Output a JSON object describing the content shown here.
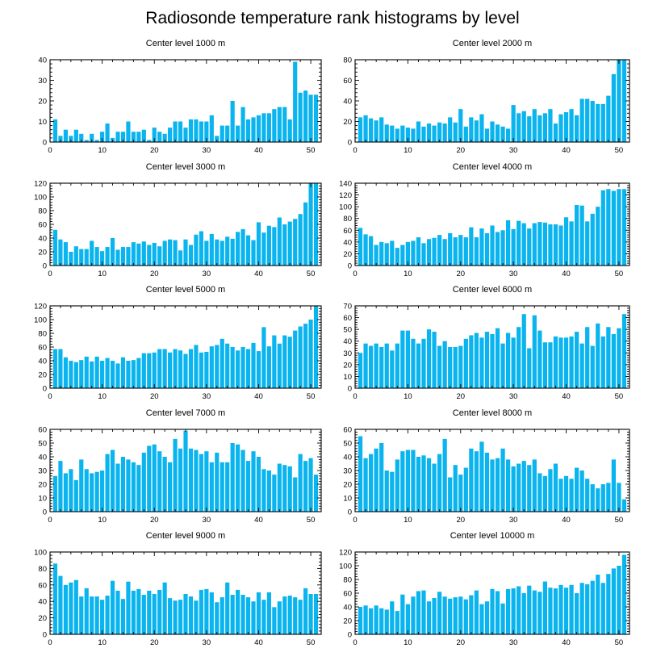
{
  "title": "Radiosonde temperature rank histograms by level",
  "colors": {
    "bar": "#0ab4ee",
    "axis": "#000000",
    "background": "#ffffff"
  },
  "chart_data": [
    {
      "type": "bar",
      "title": "Center level 1000 m",
      "xlim": [
        0,
        52
      ],
      "ylim": [
        0,
        40
      ],
      "xticks": [
        0,
        10,
        20,
        30,
        40,
        50
      ],
      "yticks": [
        0,
        10,
        20,
        30,
        40
      ],
      "x": [
        1,
        2,
        3,
        4,
        5,
        6,
        7,
        8,
        9,
        10,
        11,
        12,
        13,
        14,
        15,
        16,
        17,
        18,
        19,
        20,
        21,
        22,
        23,
        24,
        25,
        26,
        27,
        28,
        29,
        30,
        31,
        32,
        33,
        34,
        35,
        36,
        37,
        38,
        39,
        40,
        41,
        42,
        43,
        44,
        45,
        46,
        47,
        48,
        49,
        50,
        51
      ],
      "values": [
        11,
        3,
        6,
        3,
        6,
        4,
        1,
        4,
        1,
        5,
        9,
        2,
        5,
        5,
        10,
        5,
        5,
        6,
        1,
        7,
        5,
        4,
        7,
        10,
        10,
        7,
        11,
        11,
        10,
        10,
        13,
        3,
        8,
        8,
        20,
        8,
        17,
        11,
        12,
        13,
        14,
        14,
        16,
        17,
        17,
        11,
        39,
        24,
        25,
        23,
        23
      ]
    },
    {
      "type": "bar",
      "title": "Center level 2000 m",
      "xlim": [
        0,
        52
      ],
      "ylim": [
        0,
        80
      ],
      "xticks": [
        0,
        10,
        20,
        30,
        40,
        50
      ],
      "yticks": [
        0,
        20,
        40,
        60,
        80
      ],
      "x": [
        1,
        2,
        3,
        4,
        5,
        6,
        7,
        8,
        9,
        10,
        11,
        12,
        13,
        14,
        15,
        16,
        17,
        18,
        19,
        20,
        21,
        22,
        23,
        24,
        25,
        26,
        27,
        28,
        29,
        30,
        31,
        32,
        33,
        34,
        35,
        36,
        37,
        38,
        39,
        40,
        41,
        42,
        43,
        44,
        45,
        46,
        47,
        48,
        49,
        50,
        51
      ],
      "values": [
        24,
        26,
        23,
        21,
        24,
        17,
        16,
        13,
        16,
        14,
        13,
        20,
        15,
        18,
        16,
        19,
        18,
        24,
        19,
        32,
        15,
        24,
        21,
        27,
        13,
        20,
        17,
        15,
        13,
        36,
        28,
        30,
        25,
        32,
        26,
        28,
        32,
        18,
        27,
        29,
        32,
        26,
        42,
        42,
        40,
        37,
        37,
        45,
        66,
        80,
        80
      ]
    },
    {
      "type": "bar",
      "title": "Center level 3000 m",
      "xlim": [
        0,
        52
      ],
      "ylim": [
        0,
        120
      ],
      "xticks": [
        0,
        10,
        20,
        30,
        40,
        50
      ],
      "yticks": [
        0,
        20,
        40,
        60,
        80,
        100,
        120
      ],
      "x": [
        1,
        2,
        3,
        4,
        5,
        6,
        7,
        8,
        9,
        10,
        11,
        12,
        13,
        14,
        15,
        16,
        17,
        18,
        19,
        20,
        21,
        22,
        23,
        24,
        25,
        26,
        27,
        28,
        29,
        30,
        31,
        32,
        33,
        34,
        35,
        36,
        37,
        38,
        39,
        40,
        41,
        42,
        43,
        44,
        45,
        46,
        47,
        48,
        49,
        50,
        51
      ],
      "values": [
        52,
        38,
        34,
        20,
        28,
        24,
        24,
        36,
        27,
        21,
        27,
        40,
        23,
        27,
        27,
        34,
        32,
        35,
        30,
        33,
        28,
        36,
        38,
        37,
        22,
        38,
        30,
        45,
        50,
        36,
        46,
        38,
        36,
        42,
        39,
        49,
        53,
        44,
        37,
        63,
        48,
        58,
        56,
        70,
        60,
        64,
        68,
        75,
        92,
        120,
        120
      ]
    },
    {
      "type": "bar",
      "title": "Center level 4000 m",
      "xlim": [
        0,
        52
      ],
      "ylim": [
        0,
        140
      ],
      "xticks": [
        0,
        10,
        20,
        30,
        40,
        50
      ],
      "yticks": [
        0,
        20,
        40,
        60,
        80,
        100,
        120,
        140
      ],
      "x": [
        1,
        2,
        3,
        4,
        5,
        6,
        7,
        8,
        9,
        10,
        11,
        12,
        13,
        14,
        15,
        16,
        17,
        18,
        19,
        20,
        21,
        22,
        23,
        24,
        25,
        26,
        27,
        28,
        29,
        30,
        31,
        32,
        33,
        34,
        35,
        36,
        37,
        38,
        39,
        40,
        41,
        42,
        43,
        44,
        45,
        46,
        47,
        48,
        49,
        50,
        51
      ],
      "values": [
        64,
        53,
        50,
        35,
        40,
        38,
        42,
        30,
        35,
        40,
        42,
        48,
        38,
        45,
        47,
        52,
        45,
        55,
        48,
        52,
        48,
        65,
        48,
        63,
        55,
        68,
        57,
        60,
        77,
        62,
        76,
        72,
        63,
        72,
        74,
        73,
        70,
        70,
        68,
        82,
        75,
        103,
        102,
        75,
        88,
        100,
        128,
        130,
        127,
        130,
        130
      ]
    },
    {
      "type": "bar",
      "title": "Center level 5000 m",
      "xlim": [
        0,
        52
      ],
      "ylim": [
        0,
        120
      ],
      "xticks": [
        0,
        10,
        20,
        30,
        40,
        50
      ],
      "yticks": [
        0,
        20,
        40,
        60,
        80,
        100,
        120
      ],
      "x": [
        1,
        2,
        3,
        4,
        5,
        6,
        7,
        8,
        9,
        10,
        11,
        12,
        13,
        14,
        15,
        16,
        17,
        18,
        19,
        20,
        21,
        22,
        23,
        24,
        25,
        26,
        27,
        28,
        29,
        30,
        31,
        32,
        33,
        34,
        35,
        36,
        37,
        38,
        39,
        40,
        41,
        42,
        43,
        44,
        45,
        46,
        47,
        48,
        49,
        50,
        51
      ],
      "values": [
        57,
        57,
        45,
        40,
        38,
        41,
        46,
        39,
        46,
        40,
        44,
        40,
        36,
        45,
        40,
        41,
        44,
        51,
        51,
        52,
        57,
        57,
        52,
        57,
        55,
        50,
        57,
        63,
        52,
        53,
        61,
        63,
        72,
        65,
        60,
        55,
        60,
        57,
        66,
        54,
        89,
        61,
        77,
        65,
        77,
        75,
        84,
        90,
        94,
        100,
        120
      ]
    },
    {
      "type": "bar",
      "title": "Center level 6000 m",
      "xlim": [
        0,
        52
      ],
      "ylim": [
        0,
        70
      ],
      "xticks": [
        0,
        10,
        20,
        30,
        40,
        50
      ],
      "yticks": [
        0,
        10,
        20,
        30,
        40,
        50,
        60,
        70
      ],
      "x": [
        1,
        2,
        3,
        4,
        5,
        6,
        7,
        8,
        9,
        10,
        11,
        12,
        13,
        14,
        15,
        16,
        17,
        18,
        19,
        20,
        21,
        22,
        23,
        24,
        25,
        26,
        27,
        28,
        29,
        30,
        31,
        32,
        33,
        34,
        35,
        36,
        37,
        38,
        39,
        40,
        41,
        42,
        43,
        44,
        45,
        46,
        47,
        48,
        49,
        50,
        51
      ],
      "values": [
        30,
        38,
        36,
        38,
        35,
        38,
        32,
        38,
        49,
        49,
        42,
        38,
        42,
        50,
        48,
        36,
        40,
        35,
        35,
        36,
        42,
        45,
        47,
        43,
        48,
        46,
        51,
        38,
        47,
        43,
        52,
        63,
        34,
        62,
        49,
        39,
        39,
        44,
        43,
        43,
        44,
        48,
        38,
        52,
        36,
        55,
        44,
        52,
        46,
        51,
        63
      ]
    },
    {
      "type": "bar",
      "title": "Center level 7000 m",
      "xlim": [
        0,
        52
      ],
      "ylim": [
        0,
        60
      ],
      "xticks": [
        0,
        10,
        20,
        30,
        40,
        50
      ],
      "yticks": [
        0,
        10,
        20,
        30,
        40,
        50,
        60
      ],
      "x": [
        1,
        2,
        3,
        4,
        5,
        6,
        7,
        8,
        9,
        10,
        11,
        12,
        13,
        14,
        15,
        16,
        17,
        18,
        19,
        20,
        21,
        22,
        23,
        24,
        25,
        26,
        27,
        28,
        29,
        30,
        31,
        32,
        33,
        34,
        35,
        36,
        37,
        38,
        39,
        40,
        41,
        42,
        43,
        44,
        45,
        46,
        47,
        48,
        49,
        50,
        51
      ],
      "values": [
        26,
        37,
        28,
        31,
        23,
        38,
        31,
        28,
        29,
        30,
        42,
        45,
        35,
        40,
        38,
        36,
        34,
        43,
        48,
        49,
        44,
        40,
        36,
        53,
        46,
        59,
        46,
        45,
        42,
        44,
        36,
        43,
        36,
        36,
        50,
        49,
        45,
        37,
        44,
        40,
        31,
        30,
        27,
        35,
        34,
        33,
        25,
        42,
        37,
        39,
        27
      ]
    },
    {
      "type": "bar",
      "title": "Center level 8000 m",
      "xlim": [
        0,
        52
      ],
      "ylim": [
        0,
        60
      ],
      "xticks": [
        0,
        10,
        20,
        30,
        40,
        50
      ],
      "yticks": [
        0,
        10,
        20,
        30,
        40,
        50,
        60
      ],
      "x": [
        1,
        2,
        3,
        4,
        5,
        6,
        7,
        8,
        9,
        10,
        11,
        12,
        13,
        14,
        15,
        16,
        17,
        18,
        19,
        20,
        21,
        22,
        23,
        24,
        25,
        26,
        27,
        28,
        29,
        30,
        31,
        32,
        33,
        34,
        35,
        36,
        37,
        38,
        39,
        40,
        41,
        42,
        43,
        44,
        45,
        46,
        47,
        48,
        49,
        50,
        51
      ],
      "values": [
        55,
        39,
        42,
        46,
        50,
        30,
        29,
        38,
        44,
        45,
        45,
        40,
        41,
        39,
        35,
        42,
        53,
        25,
        34,
        27,
        32,
        46,
        44,
        51,
        43,
        38,
        39,
        46,
        38,
        33,
        35,
        37,
        34,
        38,
        28,
        26,
        31,
        35,
        24,
        26,
        24,
        32,
        30,
        24,
        20,
        17,
        20,
        21,
        38,
        21,
        9
      ]
    },
    {
      "type": "bar",
      "title": "Center level 9000 m",
      "xlim": [
        0,
        52
      ],
      "ylim": [
        0,
        100
      ],
      "xticks": [
        0,
        10,
        20,
        30,
        40,
        50
      ],
      "yticks": [
        0,
        20,
        40,
        60,
        80,
        100
      ],
      "x": [
        1,
        2,
        3,
        4,
        5,
        6,
        7,
        8,
        9,
        10,
        11,
        12,
        13,
        14,
        15,
        16,
        17,
        18,
        19,
        20,
        21,
        22,
        23,
        24,
        25,
        26,
        27,
        28,
        29,
        30,
        31,
        32,
        33,
        34,
        35,
        36,
        37,
        38,
        39,
        40,
        41,
        42,
        43,
        44,
        45,
        46,
        47,
        48,
        49,
        50,
        51
      ],
      "values": [
        86,
        71,
        60,
        63,
        66,
        46,
        56,
        46,
        46,
        42,
        47,
        65,
        53,
        43,
        64,
        53,
        55,
        48,
        53,
        49,
        54,
        63,
        44,
        41,
        42,
        49,
        46,
        41,
        54,
        55,
        51,
        39,
        45,
        63,
        48,
        54,
        48,
        45,
        40,
        51,
        42,
        51,
        33,
        40,
        46,
        47,
        45,
        42,
        56,
        49,
        49
      ]
    },
    {
      "type": "bar",
      "title": "Center level 10000 m",
      "xlim": [
        0,
        52
      ],
      "ylim": [
        0,
        120
      ],
      "xticks": [
        0,
        10,
        20,
        30,
        40,
        50
      ],
      "yticks": [
        0,
        20,
        40,
        60,
        80,
        100,
        120
      ],
      "x": [
        1,
        2,
        3,
        4,
        5,
        6,
        7,
        8,
        9,
        10,
        11,
        12,
        13,
        14,
        15,
        16,
        17,
        18,
        19,
        20,
        21,
        22,
        23,
        24,
        25,
        26,
        27,
        28,
        29,
        30,
        31,
        32,
        33,
        34,
        35,
        36,
        37,
        38,
        39,
        40,
        41,
        42,
        43,
        44,
        45,
        46,
        47,
        48,
        49,
        50,
        51
      ],
      "values": [
        40,
        42,
        38,
        42,
        38,
        36,
        48,
        34,
        58,
        44,
        55,
        63,
        64,
        48,
        53,
        62,
        55,
        52,
        54,
        55,
        51,
        57,
        64,
        44,
        48,
        66,
        63,
        45,
        66,
        67,
        70,
        60,
        71,
        64,
        62,
        77,
        68,
        67,
        72,
        68,
        72,
        60,
        75,
        73,
        78,
        87,
        75,
        88,
        96,
        100,
        116
      ]
    }
  ]
}
